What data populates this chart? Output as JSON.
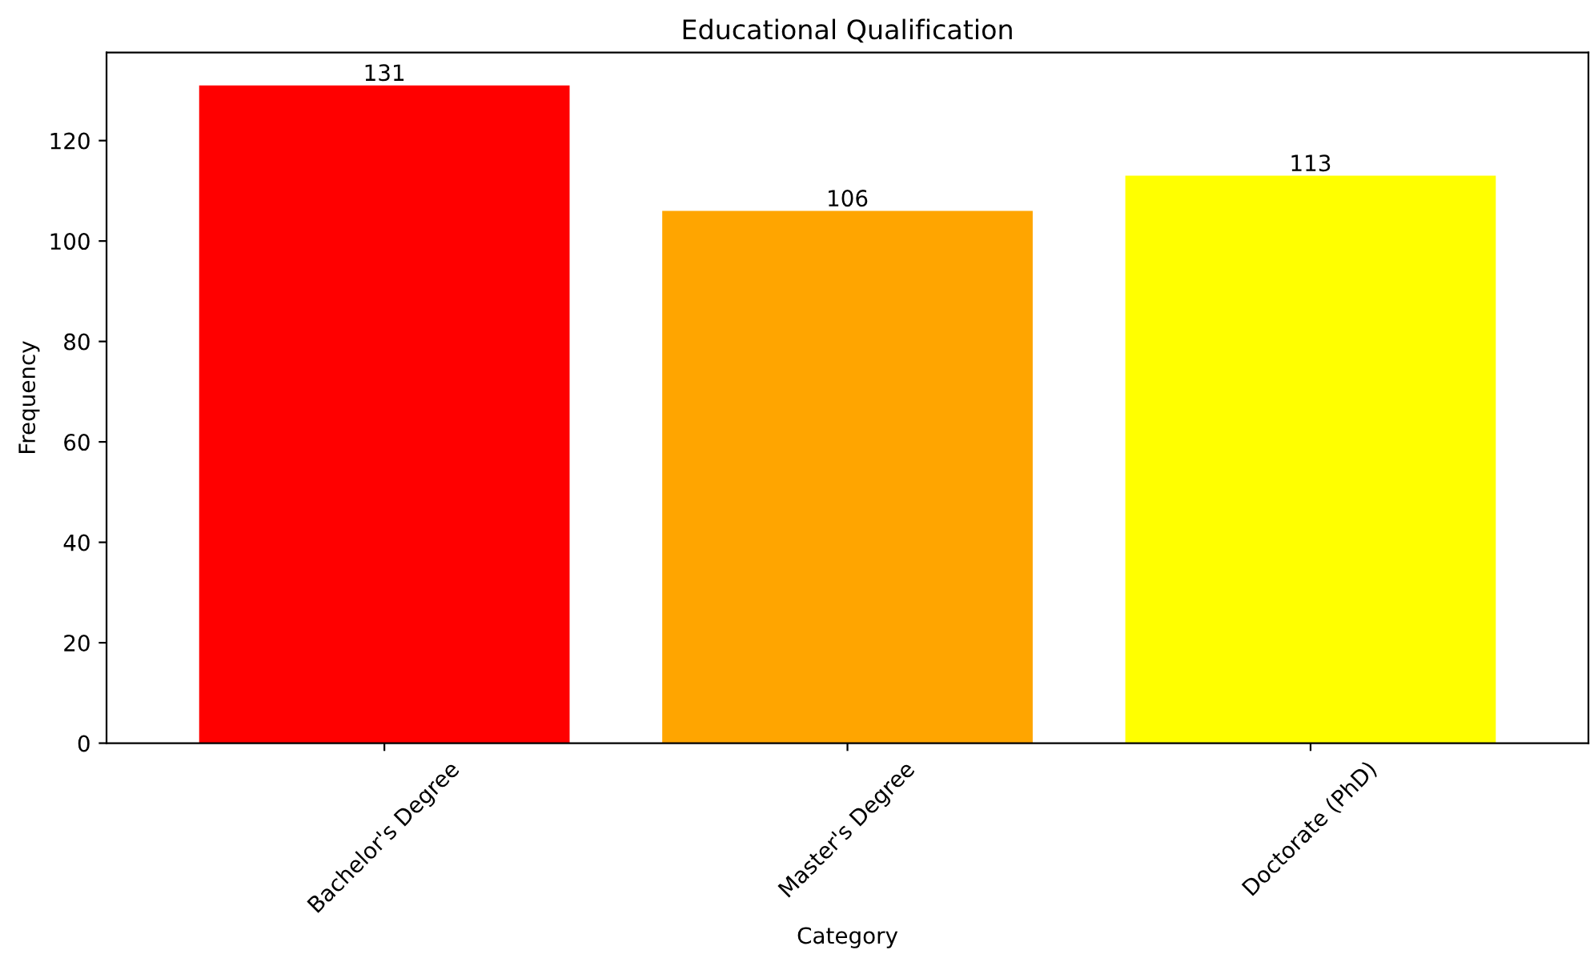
{
  "chart_data": {
    "type": "bar",
    "title": "Educational Qualification",
    "xlabel": "Category",
    "ylabel": "Frequency",
    "categories": [
      "Bachelor's Degree",
      "Master's Degree",
      "Doctorate (PhD)"
    ],
    "values": [
      131,
      106,
      113
    ],
    "colors": [
      "#ff0000",
      "#ffa500",
      "#ffff00"
    ],
    "ylim": [
      0,
      137.55
    ],
    "yticks": [
      0,
      20,
      40,
      60,
      80,
      100,
      120
    ],
    "data_labels": true,
    "grid": false
  }
}
